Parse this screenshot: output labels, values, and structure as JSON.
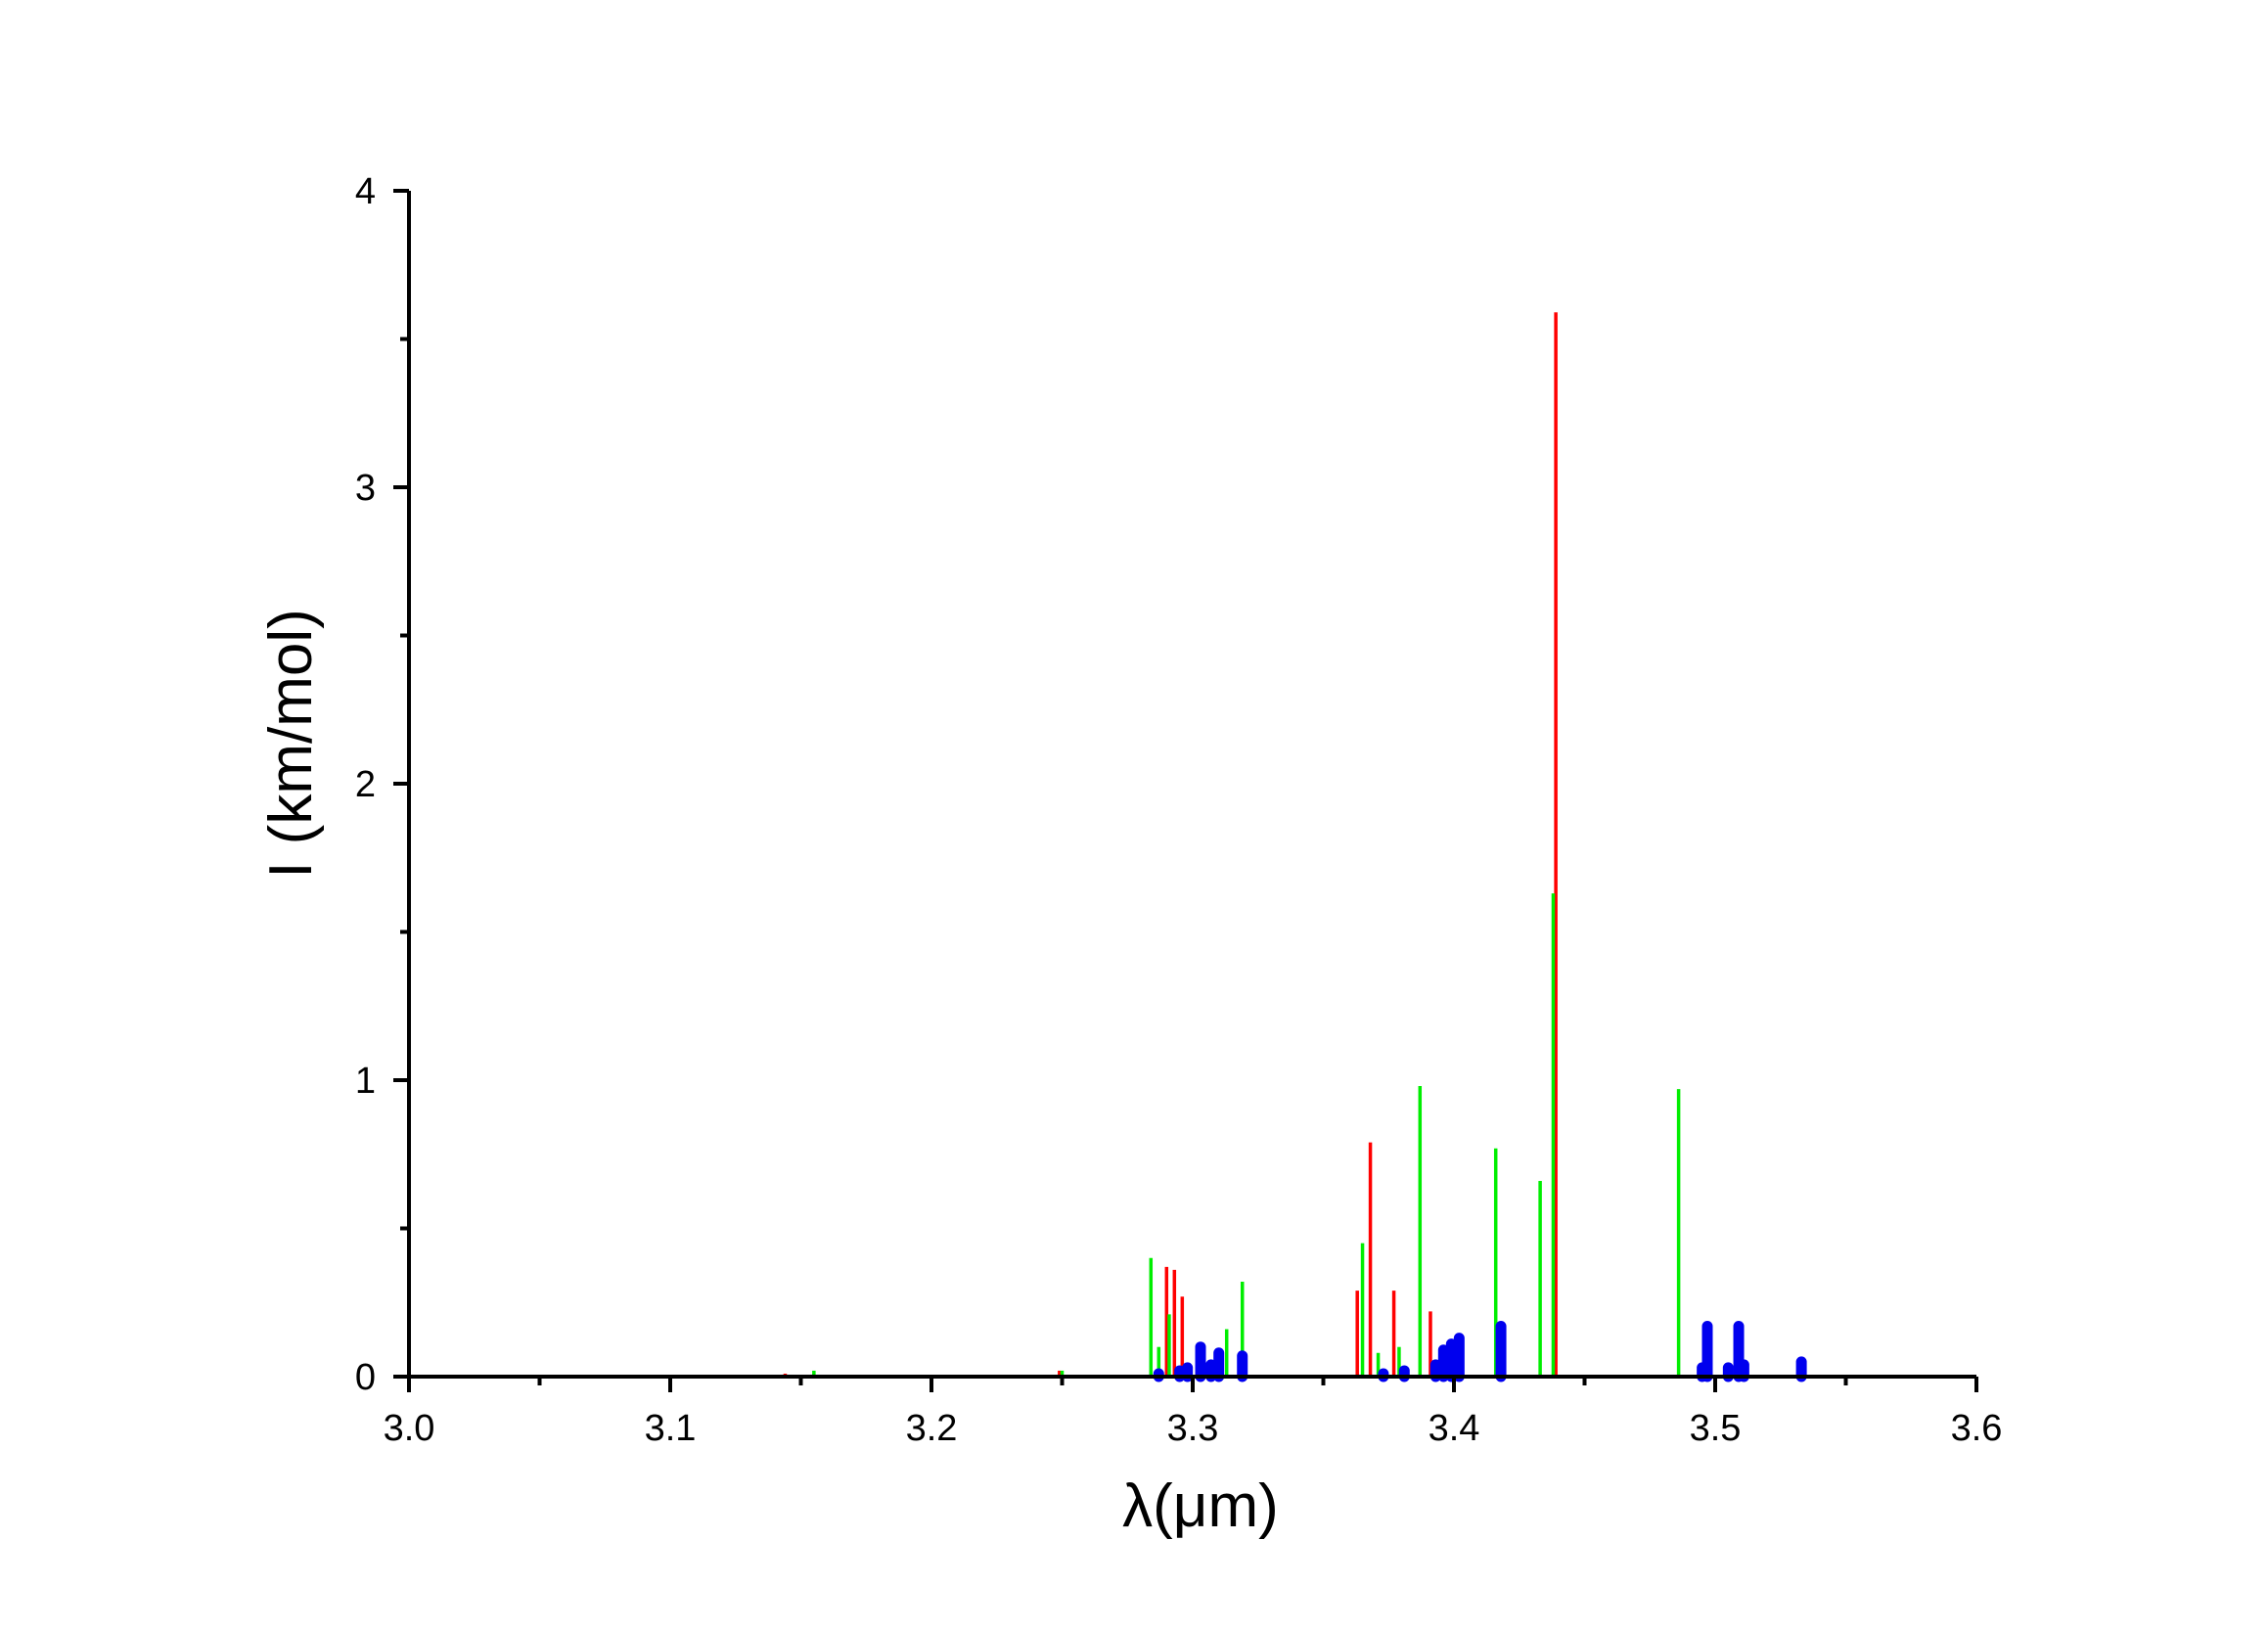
{
  "chart_data": {
    "type": "bar",
    "xlabel": "λ(μm)",
    "ylabel": "I (km/mol)",
    "xlim": [
      3.0,
      3.6
    ],
    "ylim": [
      0,
      4
    ],
    "x_major_ticks": [
      3.0,
      3.1,
      3.2,
      3.3,
      3.4,
      3.5,
      3.6
    ],
    "x_tick_labels": [
      "3.0",
      "3.1",
      "3.2",
      "3.3",
      "3.4",
      "3.5",
      "3.6"
    ],
    "y_major_ticks": [
      0,
      1,
      2,
      3,
      4
    ],
    "y_tick_labels": [
      "0",
      "1",
      "2",
      "3",
      "4"
    ],
    "grid": false,
    "legend": "none",
    "series": [
      {
        "color": "#ff0000",
        "style": "thin",
        "points": [
          {
            "x": 3.144,
            "y": 0.01
          },
          {
            "x": 3.249,
            "y": 0.02
          },
          {
            "x": 3.29,
            "y": 0.37
          },
          {
            "x": 3.293,
            "y": 0.36
          },
          {
            "x": 3.296,
            "y": 0.27
          },
          {
            "x": 3.363,
            "y": 0.29
          },
          {
            "x": 3.368,
            "y": 0.79
          },
          {
            "x": 3.377,
            "y": 0.29
          },
          {
            "x": 3.391,
            "y": 0.22
          },
          {
            "x": 3.439,
            "y": 3.59
          }
        ]
      },
      {
        "color": "#00ee00",
        "style": "thin",
        "points": [
          {
            "x": 3.155,
            "y": 0.02
          },
          {
            "x": 3.25,
            "y": 0.02
          },
          {
            "x": 3.284,
            "y": 0.4
          },
          {
            "x": 3.287,
            "y": 0.1
          },
          {
            "x": 3.291,
            "y": 0.21
          },
          {
            "x": 3.313,
            "y": 0.16
          },
          {
            "x": 3.319,
            "y": 0.32
          },
          {
            "x": 3.365,
            "y": 0.45
          },
          {
            "x": 3.371,
            "y": 0.08
          },
          {
            "x": 3.379,
            "y": 0.1
          },
          {
            "x": 3.387,
            "y": 0.98
          },
          {
            "x": 3.416,
            "y": 0.77
          },
          {
            "x": 3.433,
            "y": 0.66
          },
          {
            "x": 3.438,
            "y": 1.63
          },
          {
            "x": 3.486,
            "y": 0.97
          }
        ]
      },
      {
        "color": "#0000ee",
        "style": "thick",
        "points": [
          {
            "x": 3.287,
            "y": 0.01
          },
          {
            "x": 3.295,
            "y": 0.02
          },
          {
            "x": 3.298,
            "y": 0.03
          },
          {
            "x": 3.303,
            "y": 0.1
          },
          {
            "x": 3.307,
            "y": 0.04
          },
          {
            "x": 3.31,
            "y": 0.08
          },
          {
            "x": 3.319,
            "y": 0.07
          },
          {
            "x": 3.373,
            "y": 0.01
          },
          {
            "x": 3.381,
            "y": 0.02
          },
          {
            "x": 3.393,
            "y": 0.04
          },
          {
            "x": 3.396,
            "y": 0.09
          },
          {
            "x": 3.399,
            "y": 0.11
          },
          {
            "x": 3.402,
            "y": 0.13
          },
          {
            "x": 3.418,
            "y": 0.17
          },
          {
            "x": 3.495,
            "y": 0.03
          },
          {
            "x": 3.497,
            "y": 0.17
          },
          {
            "x": 3.505,
            "y": 0.03
          },
          {
            "x": 3.509,
            "y": 0.17
          },
          {
            "x": 3.511,
            "y": 0.04
          },
          {
            "x": 3.533,
            "y": 0.05
          }
        ]
      }
    ]
  }
}
